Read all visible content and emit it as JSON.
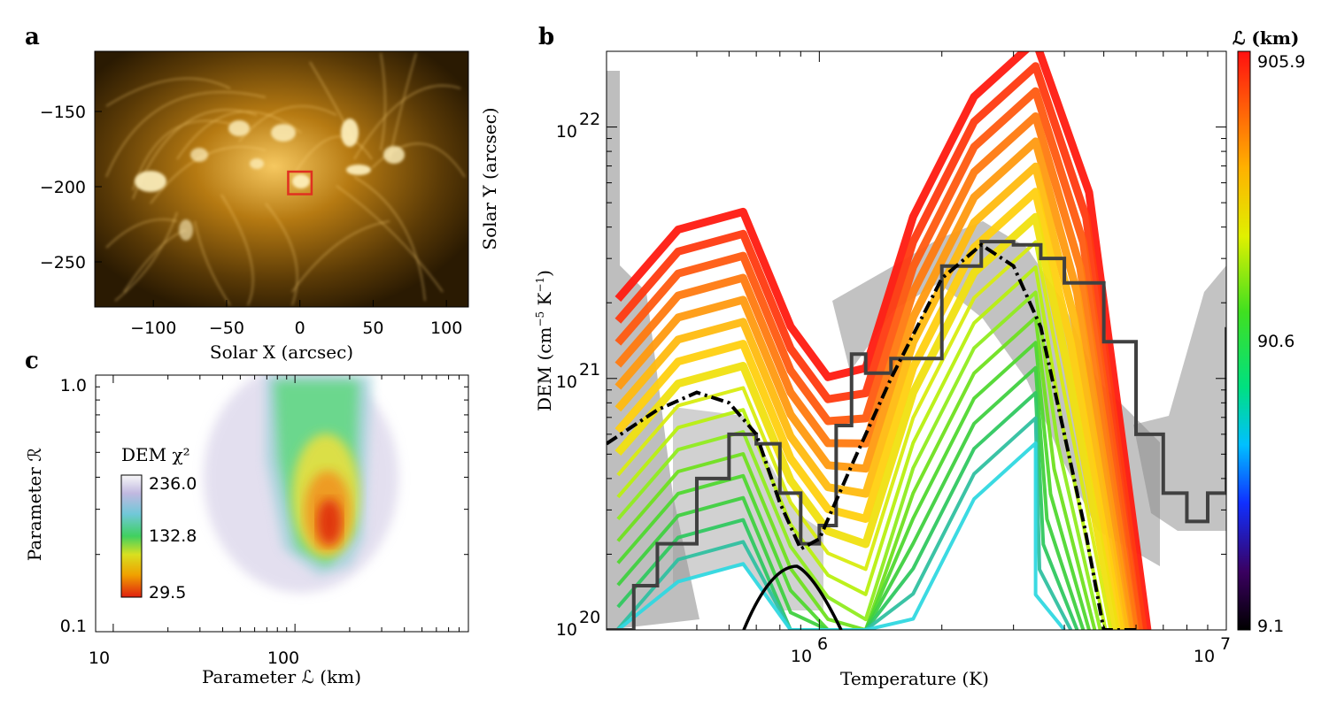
{
  "figure": {
    "panel_a": {
      "letter": "a",
      "xlabel": "Solar X (arcsec)",
      "ylabel": "Solar Y (arcsec)",
      "xticks": [
        "−100",
        "−50",
        "0",
        "50",
        "100"
      ],
      "yticks": [
        "−150",
        "−200",
        "−250"
      ],
      "xlim": [
        -140,
        115
      ],
      "ylim": [
        -280,
        -110
      ],
      "highlight_box": {
        "x": [
          -8,
          8
        ],
        "y": [
          -205,
          -190
        ],
        "color": "#e03020"
      }
    },
    "panel_b": {
      "letter": "b",
      "xlabel": "Temperature (K)",
      "ylabel_main": "DEM (cm",
      "ylabel_sup1": "−5",
      "ylabel_mid": " K",
      "ylabel_sup2": "−1",
      "ylabel_end": ")",
      "xtick_base": "10",
      "xtick_exps": [
        "6",
        "7"
      ],
      "ytick_base": "10",
      "ytick_exps": [
        "20",
        "21",
        "22"
      ],
      "colorbar": {
        "title": "ℒ (km)",
        "labels": [
          "905.9",
          "90.6",
          "9.1"
        ]
      }
    },
    "panel_c": {
      "letter": "c",
      "xlabel": "Parameter ℒ (km)",
      "ylabel": "Parameter ℛ",
      "xticks": [
        "10",
        "100"
      ],
      "yticks": [
        "1.0",
        "0.1"
      ],
      "legend_title": "DEM χ²",
      "legend_labels": [
        "236.0",
        "132.8",
        "29.5"
      ]
    }
  },
  "chart_data": [
    {
      "type": "heatmap",
      "name_in_figure": "a",
      "xlabel": "Solar X (arcsec)",
      "ylabel": "Solar Y (arcsec)",
      "xlim": [
        -140,
        115
      ],
      "ylim": [
        -280,
        -110
      ]
    },
    {
      "type": "line",
      "name_in_figure": "b",
      "xlabel": "Temperature (K)",
      "ylabel": "DEM (cm−5 K−1)",
      "xscale": "log",
      "yscale": "log",
      "xlim": [
        300000,
        10000000
      ],
      "ylim": [
        1e+20,
        2e+22
      ],
      "colorbar": {
        "title": "ℒ (km)",
        "min": 9.1,
        "max": 905.9,
        "mid": 90.6
      },
      "series": [
        {
          "x": [
            300000,
            400000,
            500000,
            600000,
            700000,
            800000,
            900000,
            1000000,
            1200000,
            1500000,
            2000000,
            2500000,
            3000000,
            3500000,
            4000000,
            4500000,
            5000000,
            6000000
          ],
          "values": [
            5.5e+20,
            7.5e+20,
            8.8e+20,
            8e+20,
            6e+20,
            3.2e+20,
            2.1e+20,
            2.3e+20,
            4.5e+20,
            1e+21,
            2.5e+21,
            3.4e+21,
            2.8e+21,
            1.6e+21,
            6e+20,
            2.5e+20,
            1e+20,
            1e+20
          ]
        },
        {
          "x": [
            300000,
            350000,
            400000,
            500000,
            600000,
            700000,
            800000,
            900000,
            1000000,
            1100000,
            1200000,
            1300000,
            1500000,
            2000000,
            2500000,
            3000000,
            3500000,
            4000000,
            5000000,
            6000000,
            7000000,
            8000000,
            9000000,
            10000000
          ],
          "values": [
            1e+20,
            1.5e+20,
            2.2e+20,
            4e+20,
            6e+20,
            5.5e+20,
            3.5e+20,
            2.2e+20,
            2.6e+20,
            6.5e+20,
            1.25e+21,
            1.05e+21,
            1.2e+21,
            2.8e+21,
            3.5e+21,
            3.4e+21,
            3e+21,
            2.4e+21,
            1.4e+21,
            6e+20,
            3.5e+20,
            2.7e+20,
            3.5e+20,
            1.6e+21
          ]
        }
      ]
    },
    {
      "type": "heatmap",
      "name_in_figure": "c",
      "xlabel": "Parameter ℒ (km)",
      "ylabel": "Parameter ℛ",
      "xscale": "log",
      "yscale": "log",
      "xlim": [
        8,
        900
      ],
      "ylim": [
        0.1,
        1.0
      ],
      "value_min": 29.5,
      "value_mid": 132.8,
      "value_max": 236.0
    }
  ]
}
